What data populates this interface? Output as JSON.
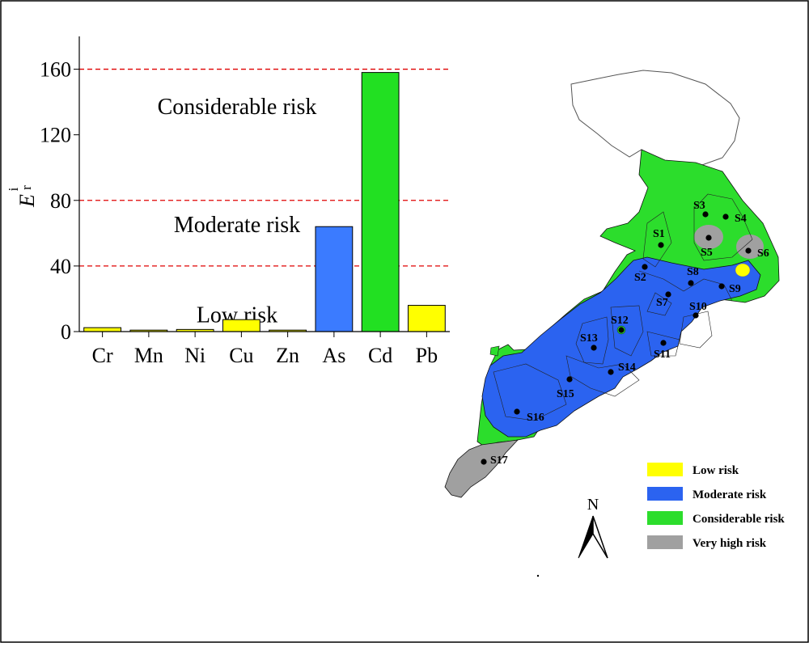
{
  "chart_data": {
    "type": "bar",
    "categories": [
      "Cr",
      "Mn",
      "Ni",
      "Cu",
      "Zn",
      "As",
      "Cd",
      "Pb"
    ],
    "values": [
      2.4,
      0.9,
      1.3,
      7.3,
      0.9,
      64,
      158,
      16
    ],
    "bar_colors": [
      "#ffff00",
      "#ffff00",
      "#ffff00",
      "#ffff00",
      "#ffff00",
      "#3b7bff",
      "#22e022",
      "#ffff00"
    ],
    "ylabel_main": "E",
    "ylabel_sub": "r",
    "ylabel_sup": "i",
    "ylim": [
      0,
      180
    ],
    "yticks": [
      0,
      40,
      80,
      120,
      160
    ],
    "thresholds": [
      40,
      80,
      160
    ],
    "threshold_color": "#e00000",
    "zones": [
      {
        "label": "Low risk",
        "y": 10
      },
      {
        "label": "Moderate risk",
        "y": 65
      },
      {
        "label": "Considerable risk",
        "y": 137
      }
    ]
  },
  "map": {
    "sites": [
      {
        "label": "S1"
      },
      {
        "label": "S2"
      },
      {
        "label": "S3"
      },
      {
        "label": "S4"
      },
      {
        "label": "S5"
      },
      {
        "label": "S6"
      },
      {
        "label": "S7"
      },
      {
        "label": "S8"
      },
      {
        "label": "S9"
      },
      {
        "label": "S10"
      },
      {
        "label": "S11"
      },
      {
        "label": "S12"
      },
      {
        "label": "S13"
      },
      {
        "label": "S14"
      },
      {
        "label": "S15"
      },
      {
        "label": "S16"
      },
      {
        "label": "S17"
      }
    ],
    "north_label": "N",
    "legend": [
      {
        "label": "Low risk",
        "color": "#ffff00"
      },
      {
        "label": "Moderate risk",
        "color": "#2b63f0"
      },
      {
        "label": "Considerable risk",
        "color": "#2cdd2c"
      },
      {
        "label": "Very high risk",
        "color": "#a0a0a0"
      }
    ]
  }
}
